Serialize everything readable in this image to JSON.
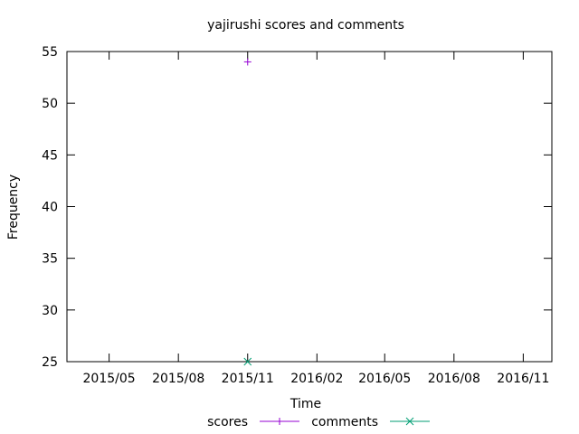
{
  "chart_data": {
    "type": "scatter",
    "title": "yajirushi scores and comments",
    "xlabel": "Time",
    "ylabel": "Frequency",
    "ylim": [
      25,
      55
    ],
    "yticks": [
      25,
      30,
      35,
      40,
      45,
      50,
      55
    ],
    "xlim": [
      "2015-03-06",
      "2016-12-09"
    ],
    "xticks": [
      {
        "date": "2015-05-01",
        "label": "2015/05"
      },
      {
        "date": "2015-08-01",
        "label": "2015/08"
      },
      {
        "date": "2015-11-01",
        "label": "2015/11"
      },
      {
        "date": "2016-02-01",
        "label": "2016/02"
      },
      {
        "date": "2016-05-01",
        "label": "2016/05"
      },
      {
        "date": "2016-08-01",
        "label": "2016/08"
      },
      {
        "date": "2016-11-01",
        "label": "2016/11"
      }
    ],
    "legend_position": "bottom",
    "grid": false,
    "series": [
      {
        "name": "scores",
        "color": "#9400d3",
        "marker": "plus",
        "points": [
          {
            "x": "2015-11-01",
            "y": 54
          }
        ]
      },
      {
        "name": "comments",
        "color": "#009e73",
        "marker": "cross",
        "points": [
          {
            "x": "2015-11-01",
            "y": 25
          }
        ]
      }
    ]
  }
}
